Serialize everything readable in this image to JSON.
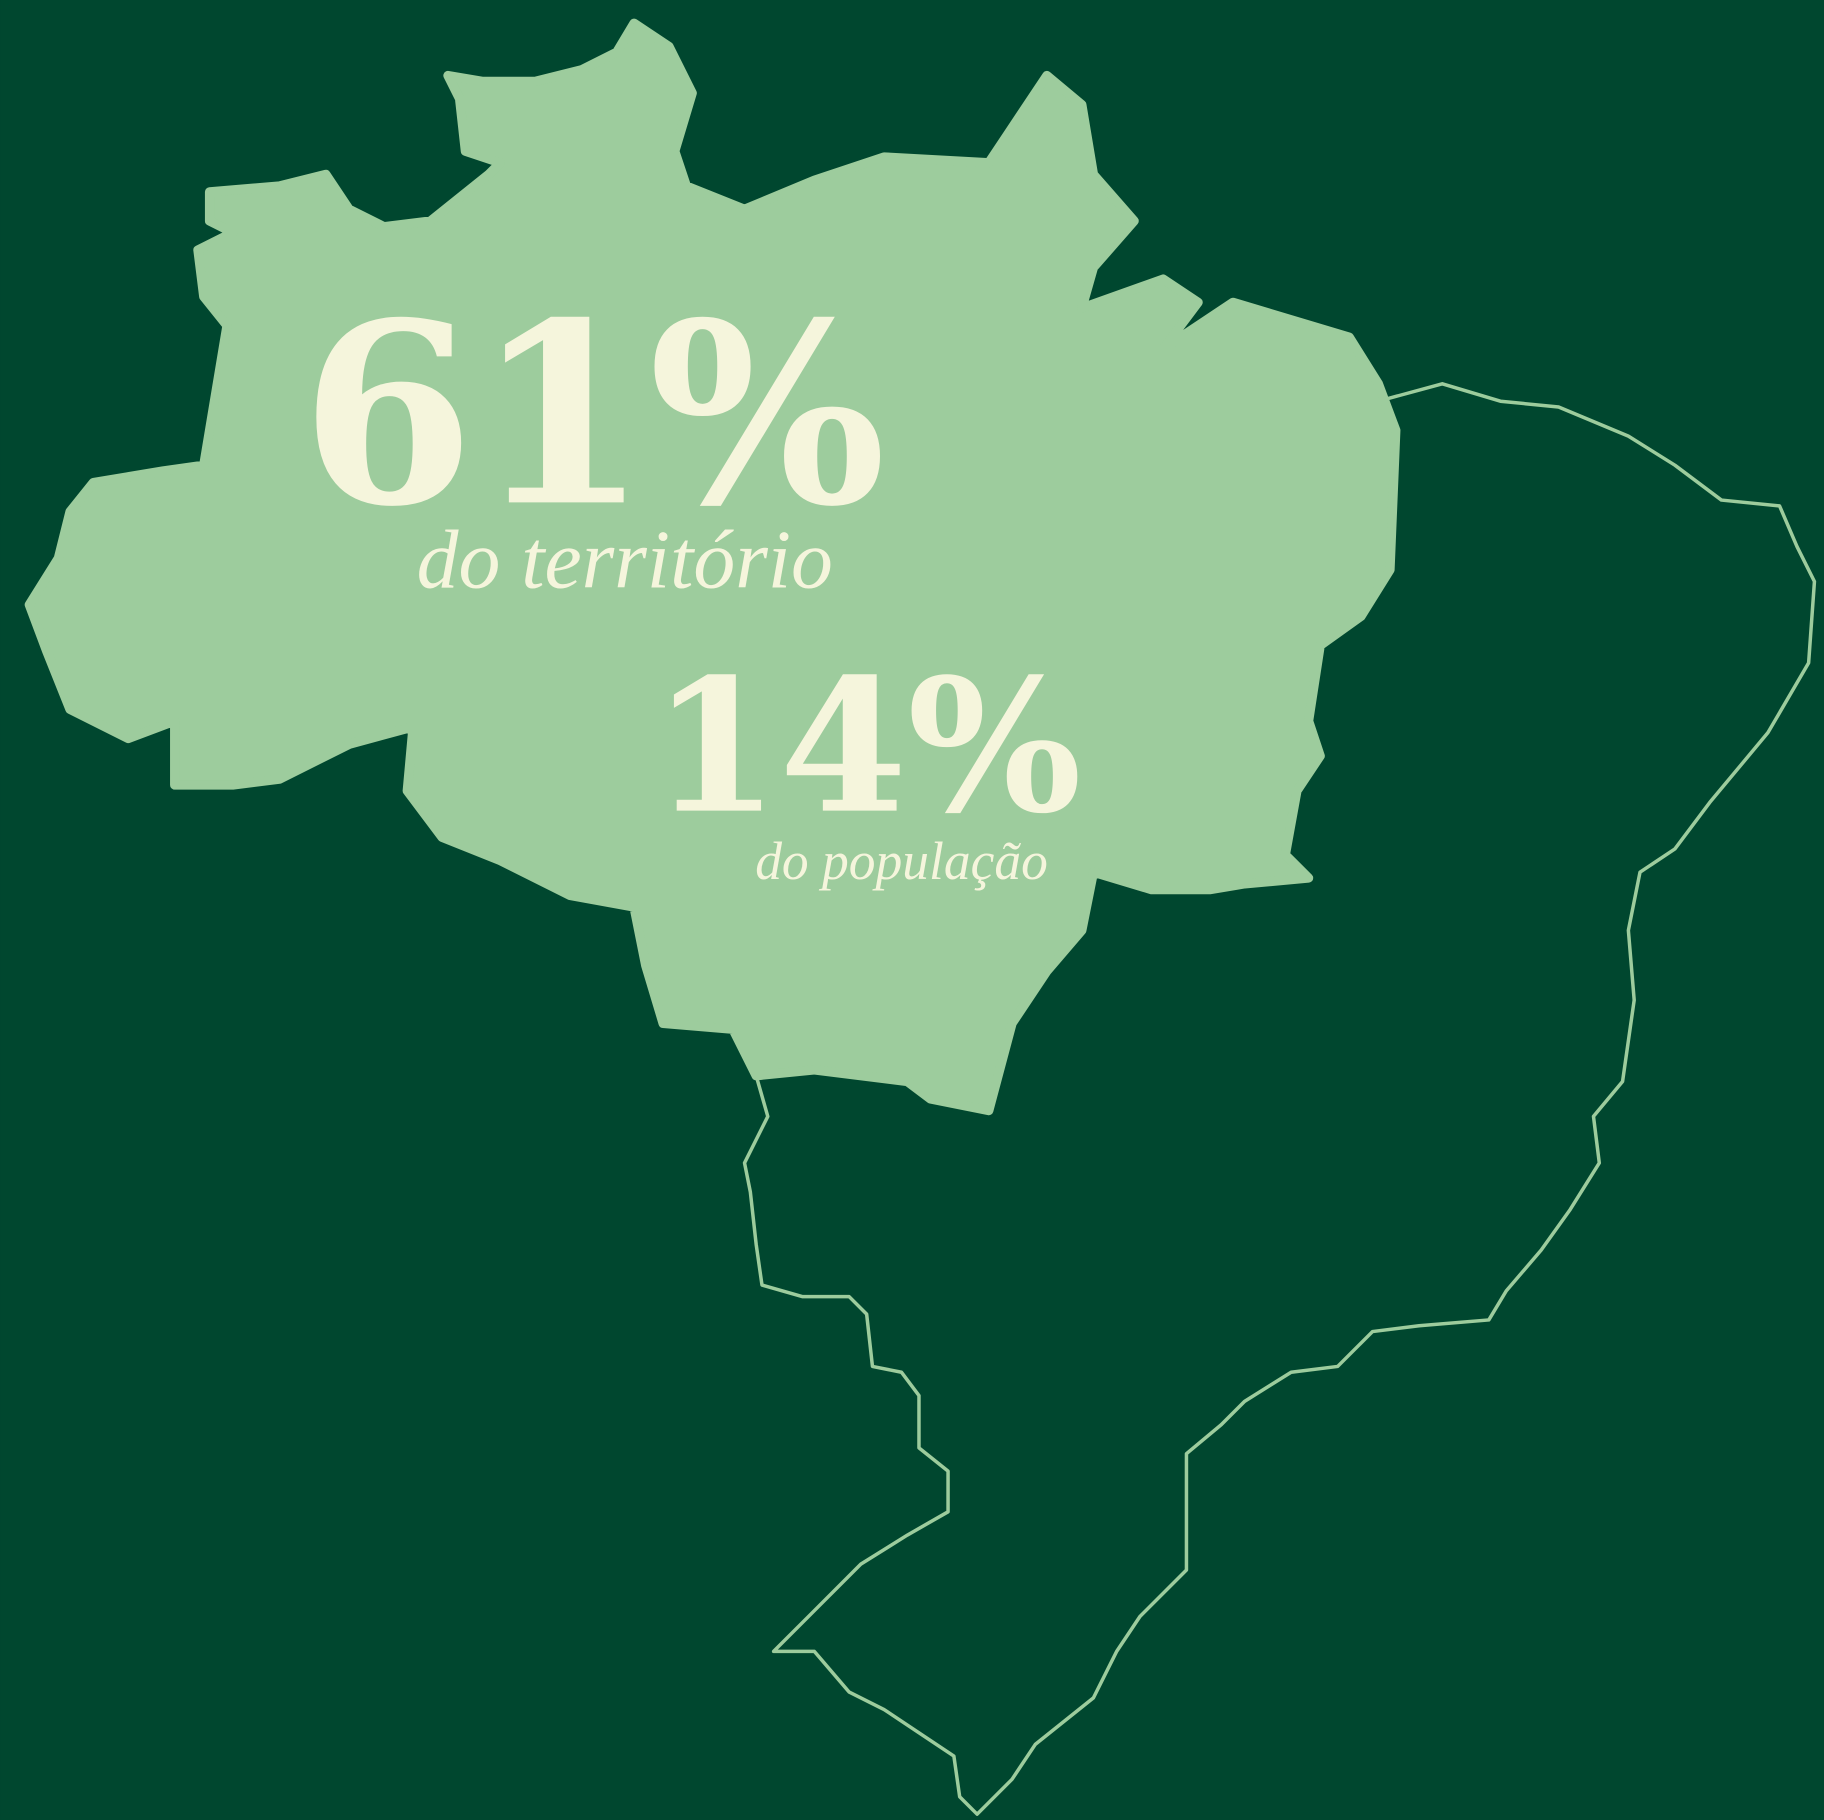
{
  "stats": [
    {
      "value": "61%",
      "label": "do território"
    },
    {
      "value": "14%",
      "label": "do população"
    }
  ]
}
